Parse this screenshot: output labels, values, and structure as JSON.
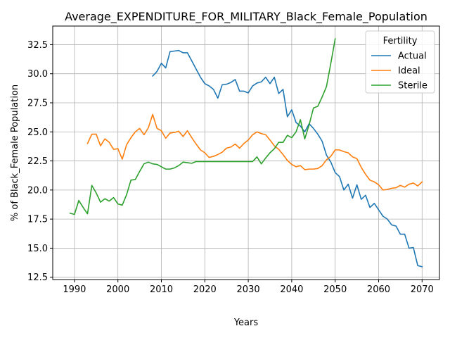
{
  "chart_data": {
    "type": "line",
    "title": "Average_EXPENDITURE_FOR_MILITARY_Black_Female_Population",
    "xlabel": "Years",
    "ylabel": "% of Black_Female Population",
    "xlim": [
      1985,
      2074
    ],
    "ylim": [
      12.3,
      34.1
    ],
    "xticks": [
      1990,
      2000,
      2010,
      2020,
      2030,
      2040,
      2050,
      2060,
      2070
    ],
    "yticks": [
      12.5,
      15.0,
      17.5,
      20.0,
      22.5,
      25.0,
      27.5,
      30.0,
      32.5
    ],
    "grid": true,
    "legend": {
      "title": "Fertility",
      "position": "top-right"
    },
    "series": [
      {
        "name": "Actual",
        "color": "#1f77b4",
        "x": [
          2008,
          2009,
          2010,
          2011,
          2012,
          2013,
          2014,
          2015,
          2016,
          2017,
          2018,
          2019,
          2020,
          2021,
          2022,
          2023,
          2024,
          2025,
          2026,
          2027,
          2028,
          2029,
          2030,
          2031,
          2032,
          2033,
          2034,
          2035,
          2036,
          2037,
          2038,
          2039,
          2040,
          2041,
          2042,
          2043,
          2044,
          2045,
          2046,
          2047,
          2048,
          2049,
          2050,
          2051,
          2052,
          2053,
          2054,
          2055,
          2056,
          2057,
          2058,
          2059,
          2060,
          2061,
          2062,
          2063,
          2064,
          2065,
          2066,
          2067,
          2068,
          2069,
          2070
        ],
        "y": [
          29.8,
          30.2,
          30.9,
          30.5,
          31.9,
          31.95,
          32.0,
          31.8,
          31.8,
          31.1,
          30.4,
          29.7,
          29.15,
          28.95,
          28.65,
          27.9,
          29.05,
          29.1,
          29.25,
          29.5,
          28.5,
          28.5,
          28.35,
          28.95,
          29.2,
          29.3,
          29.7,
          29.15,
          29.7,
          28.3,
          28.65,
          26.3,
          26.9,
          25.8,
          25.5,
          25.0,
          25.7,
          25.3,
          24.8,
          24.2,
          23.0,
          22.4,
          21.5,
          21.15,
          20.0,
          20.5,
          19.3,
          20.45,
          19.2,
          19.55,
          18.5,
          18.85,
          18.3,
          17.75,
          17.5,
          17.0,
          16.9,
          16.2,
          16.2,
          15.0,
          15.05,
          13.5,
          13.4
        ]
      },
      {
        "name": "Ideal",
        "color": "#ff7f0e",
        "x": [
          1993,
          1994,
          1995,
          1996,
          1997,
          1998,
          1999,
          2000,
          2001,
          2002,
          2003,
          2004,
          2005,
          2006,
          2007,
          2008,
          2009,
          2010,
          2011,
          2012,
          2013,
          2014,
          2015,
          2016,
          2017,
          2018,
          2019,
          2020,
          2021,
          2022,
          2023,
          2024,
          2025,
          2026,
          2027,
          2028,
          2029,
          2030,
          2031,
          2032,
          2033,
          2034,
          2035,
          2036,
          2037,
          2038,
          2039,
          2040,
          2041,
          2042,
          2043,
          2044,
          2045,
          2046,
          2047,
          2048,
          2049,
          2050,
          2051,
          2052,
          2053,
          2054,
          2055,
          2056,
          2057,
          2058,
          2059,
          2060,
          2061,
          2062,
          2063,
          2064,
          2065,
          2066,
          2067,
          2068,
          2069,
          2070
        ],
        "y": [
          24.0,
          24.8,
          24.8,
          23.8,
          24.4,
          24.1,
          23.5,
          23.55,
          22.65,
          23.9,
          24.5,
          25.0,
          25.3,
          24.75,
          25.35,
          26.5,
          25.3,
          25.1,
          24.45,
          24.9,
          24.95,
          25.05,
          24.6,
          25.1,
          24.5,
          23.95,
          23.45,
          23.2,
          22.8,
          22.9,
          23.05,
          23.25,
          23.6,
          23.7,
          23.95,
          23.6,
          24.0,
          24.3,
          24.75,
          25.0,
          24.85,
          24.75,
          24.3,
          23.8,
          23.5,
          23.05,
          22.55,
          22.2,
          22.0,
          22.1,
          21.75,
          21.8,
          21.8,
          21.85,
          22.1,
          22.6,
          22.9,
          23.45,
          23.45,
          23.3,
          23.2,
          22.85,
          22.7,
          21.95,
          21.35,
          20.85,
          20.7,
          20.45,
          20.0,
          20.05,
          20.15,
          20.2,
          20.4,
          20.25,
          20.5,
          20.6,
          20.35,
          20.7
        ]
      },
      {
        "name": "Sterile",
        "color": "#2ca02c",
        "x": [
          1989,
          1990,
          1991,
          1992,
          1993,
          1994,
          1995,
          1996,
          1997,
          1998,
          1999,
          2000,
          2001,
          2002,
          2003,
          2004,
          2005,
          2006,
          2007,
          2008,
          2009,
          2010,
          2011,
          2012,
          2013,
          2014,
          2015,
          2016,
          2017,
          2018,
          2019,
          2020,
          2021,
          2022,
          2023,
          2024,
          2025,
          2026,
          2027,
          2028,
          2029,
          2030,
          2031,
          2032,
          2033,
          2034,
          2035,
          2036,
          2037,
          2038,
          2039,
          2040,
          2041,
          2042,
          2043,
          2044,
          2045,
          2046,
          2047,
          2048,
          2049,
          2050
        ],
        "y": [
          18.0,
          17.9,
          19.1,
          18.5,
          17.95,
          20.4,
          19.75,
          18.95,
          19.25,
          19.05,
          19.35,
          18.8,
          18.7,
          19.6,
          20.85,
          20.9,
          21.6,
          22.25,
          22.4,
          22.25,
          22.2,
          22.0,
          21.8,
          21.8,
          21.9,
          22.1,
          22.4,
          22.35,
          22.3,
          22.45,
          22.45,
          22.45,
          22.45,
          22.45,
          22.45,
          22.45,
          22.45,
          22.45,
          22.45,
          22.45,
          22.45,
          22.45,
          22.45,
          22.85,
          22.25,
          22.75,
          23.2,
          23.55,
          24.1,
          24.1,
          24.7,
          24.5,
          25.0,
          26.05,
          24.4,
          25.6,
          27.05,
          27.2,
          28.0,
          28.9,
          30.9,
          33.0
        ]
      }
    ]
  }
}
